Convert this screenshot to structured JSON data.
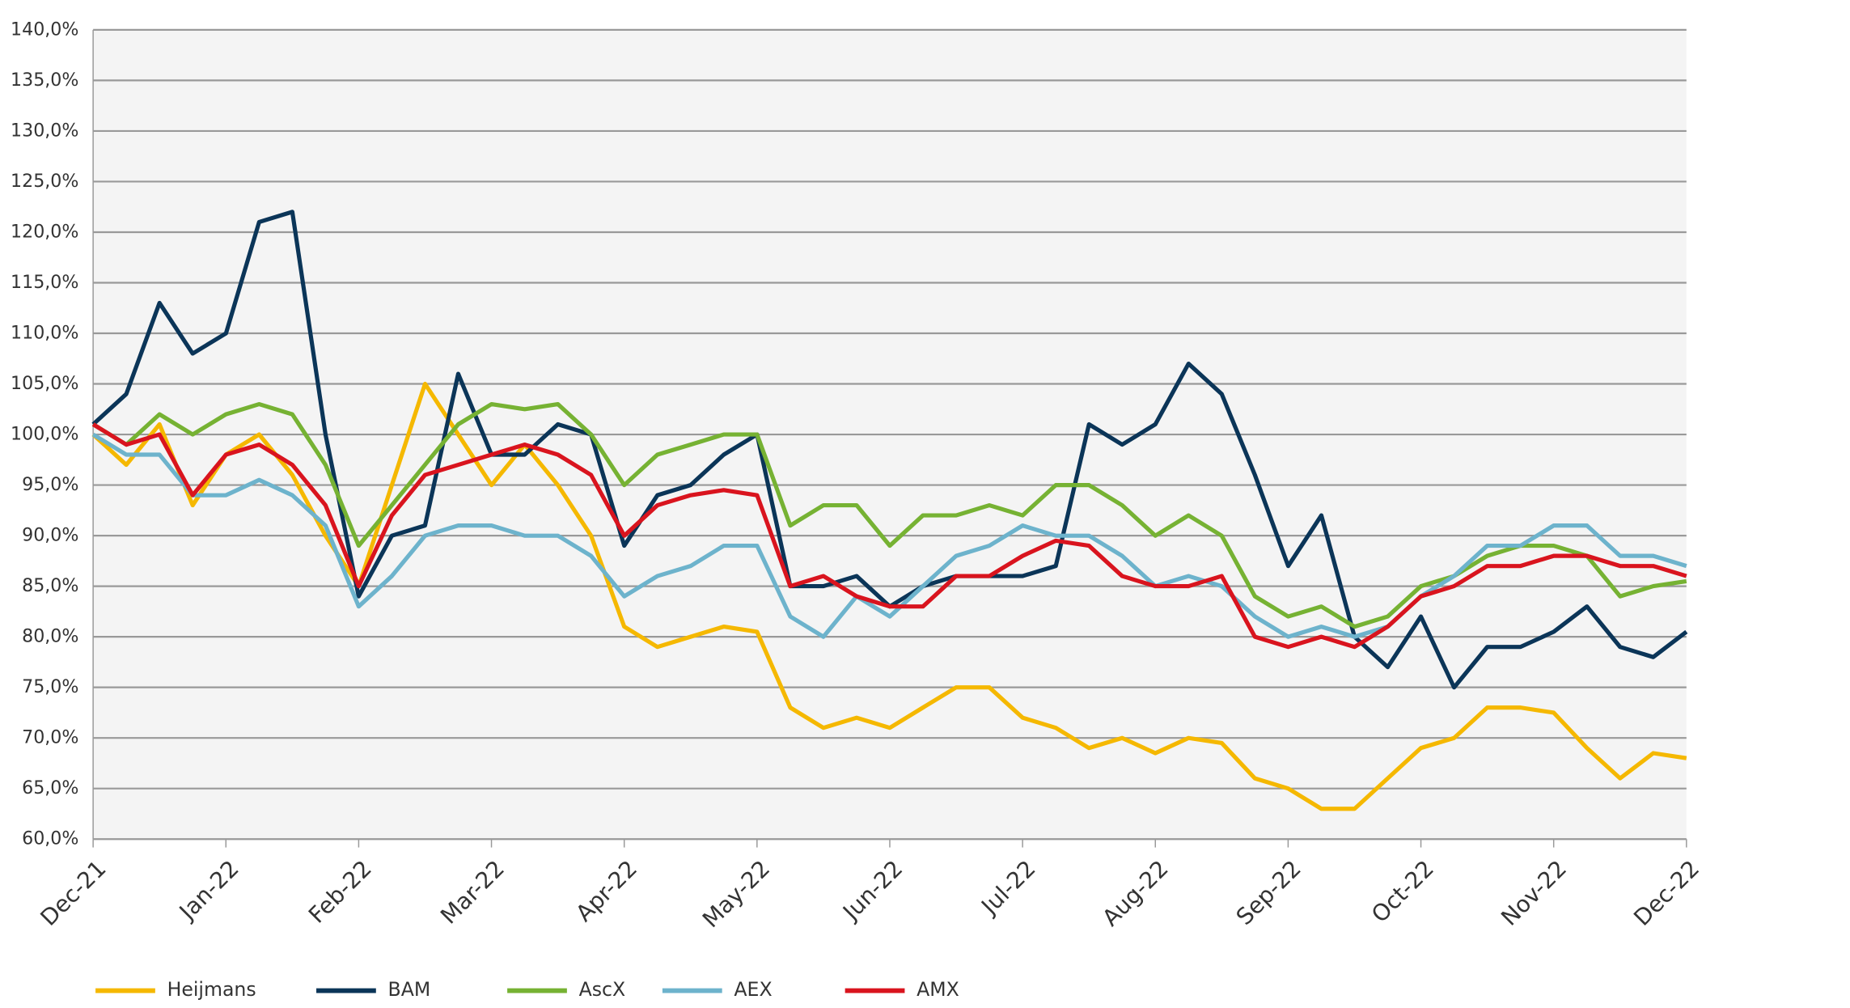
{
  "chart_data": {
    "type": "line",
    "categories": [
      "Dec-21",
      null,
      null,
      null,
      "Jan-22",
      null,
      null,
      null,
      "Feb-22",
      null,
      null,
      null,
      "Mar-22",
      null,
      null,
      null,
      "Apr-22",
      null,
      null,
      null,
      "May-22",
      null,
      null,
      null,
      "Jun-22",
      null,
      null,
      null,
      "Jul-22",
      null,
      null,
      null,
      "Aug-22",
      null,
      null,
      null,
      "Sep-22",
      null,
      null,
      null,
      "Oct-22",
      null,
      null,
      null,
      "Nov-22",
      null,
      null,
      null,
      "Dec-22"
    ],
    "series": [
      {
        "name": "Heijmans",
        "color": "#f5b800",
        "values": [
          100,
          97,
          101,
          93,
          98,
          100,
          96,
          90,
          85,
          95,
          105,
          100,
          95,
          99,
          95,
          90,
          81,
          79,
          80,
          81,
          80.5,
          73,
          71,
          72,
          71,
          73,
          75,
          75,
          72,
          71,
          69,
          70,
          68.5,
          70,
          69.5,
          66,
          65,
          63,
          63,
          66,
          69,
          70,
          73,
          73,
          72.5,
          69,
          66,
          68.5,
          68
        ]
      },
      {
        "name": "BAM",
        "color": "#0b3558",
        "values": [
          101,
          104,
          113,
          108,
          110,
          121,
          122,
          100,
          84,
          90,
          91,
          106,
          98,
          98,
          101,
          100,
          89,
          94,
          95,
          98,
          100,
          85,
          85,
          86,
          83,
          85,
          86,
          86,
          86,
          87,
          101,
          99,
          101,
          107,
          104,
          96,
          87,
          92,
          80,
          77,
          82,
          75,
          79,
          79,
          80.5,
          83,
          79,
          78,
          80.5
        ]
      },
      {
        "name": "AscX",
        "color": "#76b233",
        "values": [
          101,
          99,
          102,
          100,
          102,
          103,
          102,
          97,
          89,
          93,
          97,
          101,
          103,
          102.5,
          103,
          100,
          95,
          98,
          99,
          100,
          100,
          91,
          93,
          93,
          89,
          92,
          92,
          93,
          92,
          95,
          95,
          93,
          90,
          92,
          90,
          84,
          82,
          83,
          81,
          82,
          85,
          86,
          88,
          89,
          89,
          88,
          84,
          85,
          85.5
        ]
      },
      {
        "name": "AEX",
        "color": "#6db3cc",
        "values": [
          100,
          98,
          98,
          94,
          94,
          95.5,
          94,
          91,
          83,
          86,
          90,
          91,
          91,
          90,
          90,
          88,
          84,
          86,
          87,
          89,
          89,
          82,
          80,
          84,
          82,
          85,
          88,
          89,
          91,
          90,
          90,
          88,
          85,
          86,
          85,
          82,
          80,
          81,
          80,
          81,
          84,
          86,
          89,
          89,
          91,
          91,
          88,
          88,
          87
        ]
      },
      {
        "name": "AMX",
        "color": "#d9141e",
        "values": [
          101,
          99,
          100,
          94,
          98,
          99,
          97,
          93,
          85,
          92,
          96,
          97,
          98,
          99,
          98,
          96,
          90,
          93,
          94,
          94.5,
          94,
          85,
          86,
          84,
          83,
          83,
          86,
          86,
          88,
          89.5,
          89,
          86,
          85,
          85,
          86,
          80,
          79,
          80,
          79,
          81,
          84,
          85,
          87,
          87,
          88,
          88,
          87,
          87,
          86
        ]
      }
    ],
    "ylim": [
      60,
      140
    ],
    "yticks": [
      {
        "value": 60,
        "label": "60,0%"
      },
      {
        "value": 65,
        "label": "65,0%"
      },
      {
        "value": 70,
        "label": "70,0%"
      },
      {
        "value": 75,
        "label": "75,0%"
      },
      {
        "value": 80,
        "label": "80,0%"
      },
      {
        "value": 85,
        "label": "85,0%"
      },
      {
        "value": 90,
        "label": "90,0%"
      },
      {
        "value": 95,
        "label": "95,0%"
      },
      {
        "value": 100,
        "label": "100,0%"
      },
      {
        "value": 105,
        "label": "105,0%"
      },
      {
        "value": 110,
        "label": "110,0%"
      },
      {
        "value": 115,
        "label": "115,0%"
      },
      {
        "value": 120,
        "label": "120,0%"
      },
      {
        "value": 125,
        "label": "125,0%"
      },
      {
        "value": 130,
        "label": "130,0%"
      },
      {
        "value": 135,
        "label": "135,0%"
      },
      {
        "value": 140,
        "label": "140,0%"
      }
    ],
    "grid": true,
    "legend": "bottom"
  }
}
